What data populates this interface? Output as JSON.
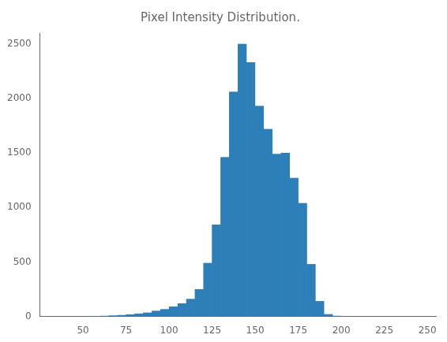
{
  "chart_data": {
    "type": "histogram",
    "title": "Pixel Intensity Distribution.",
    "bins": [
      55,
      60,
      65,
      70,
      75,
      80,
      85,
      90,
      95,
      100,
      105,
      110,
      115,
      120,
      125,
      130,
      135,
      140,
      145,
      150,
      155,
      160,
      165,
      170,
      175,
      180,
      185,
      190,
      195,
      200,
      205,
      210,
      215,
      220,
      225,
      230
    ],
    "values": [
      2,
      5,
      8,
      12,
      18,
      25,
      35,
      50,
      65,
      90,
      120,
      160,
      250,
      490,
      840,
      1460,
      2060,
      2500,
      2330,
      1930,
      1720,
      1490,
      1500,
      1270,
      1040,
      480,
      140,
      20,
      5,
      0,
      0,
      0,
      0,
      0,
      0
    ],
    "color": "#2d7fb8",
    "xlim": [
      25,
      255
    ],
    "ylim": [
      0,
      2600
    ],
    "xticks": [
      50,
      75,
      100,
      125,
      150,
      175,
      200,
      225,
      250
    ],
    "yticks": [
      0,
      500,
      1000,
      1500,
      2000,
      2500
    ],
    "grid": false
  }
}
